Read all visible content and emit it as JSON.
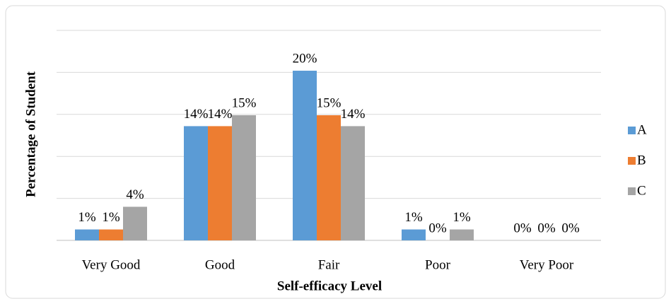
{
  "chart_data": {
    "type": "bar",
    "x_label": "Self-efficacy Level",
    "y_label": "Percentage of Student",
    "categories": [
      "Very Good",
      "Good",
      "Fair",
      "Poor",
      "Very Poor"
    ],
    "series": [
      {
        "name": "A",
        "color": "#5b9bd5",
        "values": [
          1.3,
          13.6,
          20.2,
          1.3,
          0
        ],
        "value_labels": [
          "1%",
          "14%",
          "20%",
          "1%",
          "0%"
        ]
      },
      {
        "name": "B",
        "color": "#ed7d31",
        "values": [
          1.3,
          13.6,
          14.9,
          0,
          0
        ],
        "value_labels": [
          "1%",
          "14%",
          "15%",
          "0%",
          "0%"
        ]
      },
      {
        "name": "C",
        "color": "#a5a5a5",
        "values": [
          4,
          14.9,
          13.6,
          1.3,
          0
        ],
        "value_labels": [
          "4%",
          "15%",
          "14%",
          "1%",
          "0%"
        ]
      }
    ],
    "ylim": [
      0,
      25
    ],
    "yticks": [
      0,
      5,
      10,
      15,
      20,
      25
    ],
    "grid": true,
    "legend": "right"
  }
}
